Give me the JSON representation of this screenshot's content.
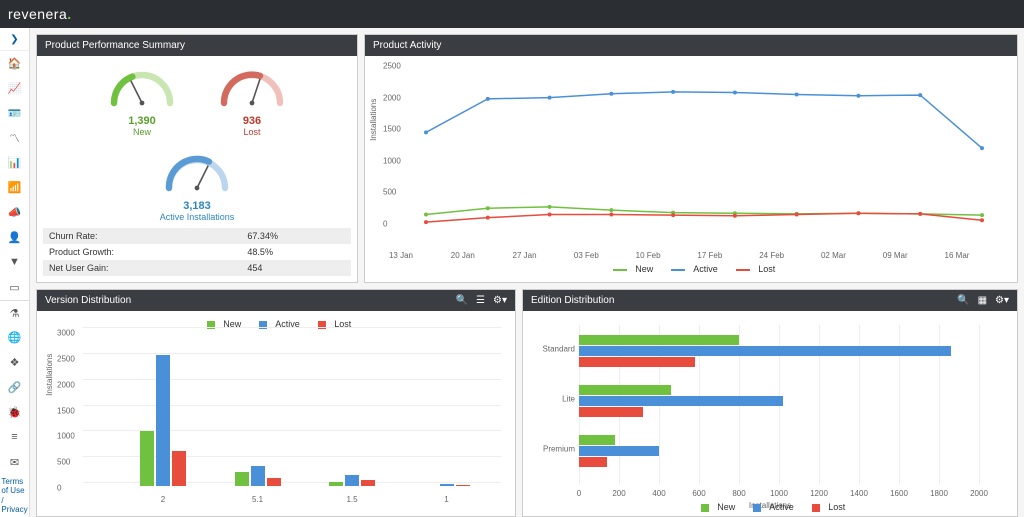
{
  "brand": {
    "name": "revenera",
    "accent": "#7cc142"
  },
  "colors": {
    "new": "#71c140",
    "active": "#4a90d9",
    "lost": "#e74c3c",
    "panel_header": "#3a3d42",
    "grid": "#eeeeee"
  },
  "panels": {
    "summary": {
      "title": "Product Performance Summary",
      "gauges": {
        "new": {
          "value": "1,390",
          "label": "New",
          "arc_color": "#71c140",
          "arc_light": "#c8e6b0",
          "frac": 0.35
        },
        "lost": {
          "value": "936",
          "label": "Lost",
          "arc_color": "#d36a5e",
          "arc_light": "#f0c0ba",
          "frac": 0.58
        },
        "active": {
          "value": "3,183",
          "label": "Active Installations",
          "arc_color": "#5b9bd5",
          "arc_light": "#bcd6ee",
          "frac": 0.62
        }
      },
      "stats": [
        {
          "label": "Churn Rate:",
          "value": "67.34%"
        },
        {
          "label": "Product Growth:",
          "value": "48.5%"
        },
        {
          "label": "Net User Gain:",
          "value": "454"
        }
      ]
    },
    "activity": {
      "title": "Product Activity",
      "ylabel": "Installations",
      "ymax": 2500,
      "ytick_step": 500,
      "x_labels": [
        "13 Jan",
        "20 Jan",
        "27 Jan",
        "03 Feb",
        "10 Feb",
        "17 Feb",
        "24 Feb",
        "02 Mar",
        "09 Mar",
        "16 Mar"
      ],
      "series": {
        "new": [
          150,
          250,
          270,
          220,
          180,
          170,
          160,
          170,
          160,
          140
        ],
        "active": [
          1450,
          1980,
          2000,
          2060,
          2090,
          2080,
          2050,
          2030,
          2040,
          1200
        ],
        "lost": [
          30,
          100,
          150,
          150,
          140,
          130,
          150,
          170,
          160,
          60
        ]
      },
      "legend": [
        "New",
        "Active",
        "Lost"
      ]
    },
    "version": {
      "title": "Version Distribution",
      "ylabel": "Installations",
      "ymax": 3000,
      "ytick_step": 500,
      "categories": [
        "2",
        "5.1",
        "1.5",
        "1"
      ],
      "series": {
        "new": [
          1060,
          280,
          70,
          0
        ],
        "active": [
          2540,
          390,
          210,
          40
        ],
        "lost": [
          680,
          150,
          120,
          20
        ]
      },
      "legend": [
        "New",
        "Active",
        "Lost"
      ]
    },
    "edition": {
      "title": "Edition Distribution",
      "xlabel": "Installations",
      "xmax": 2000,
      "xtick_step": 200,
      "categories": [
        "Standard",
        "Lite",
        "Premium"
      ],
      "series": {
        "new": [
          800,
          460,
          180
        ],
        "active": [
          1860,
          1020,
          400
        ],
        "lost": [
          580,
          320,
          140
        ]
      },
      "legend": [
        "New",
        "Active",
        "Lost"
      ]
    }
  },
  "footer": {
    "terms": "Terms of Use",
    "privacy": "/ Privacy"
  }
}
